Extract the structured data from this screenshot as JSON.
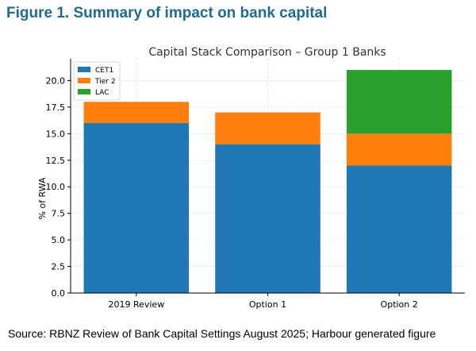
{
  "figure_title": "Figure 1. Summary of impact on bank capital",
  "source_note": "Source: RBNZ Review of Bank Capital Settings August 2025; Harbour generated figure",
  "chart_data": {
    "type": "bar",
    "stacked": true,
    "title": "Capital Stack Comparison – Group 1 Banks",
    "xlabel": "",
    "ylabel": "% of RWA",
    "categories": [
      "2019 Review",
      "Option 1",
      "Option 2"
    ],
    "series": [
      {
        "name": "CET1",
        "color": "#1f77b4",
        "values": [
          16,
          14,
          12
        ]
      },
      {
        "name": "Tier 2",
        "color": "#ff7f0e",
        "values": [
          2,
          3,
          3
        ]
      },
      {
        "name": "LAC",
        "color": "#2ca02c",
        "values": [
          0,
          0,
          6
        ]
      }
    ],
    "ylim": [
      0,
      22.05
    ],
    "yticks": [
      0.0,
      2.5,
      5.0,
      7.5,
      10.0,
      12.5,
      15.0,
      17.5,
      20.0
    ],
    "grid": true,
    "legend_position": "top-left"
  }
}
